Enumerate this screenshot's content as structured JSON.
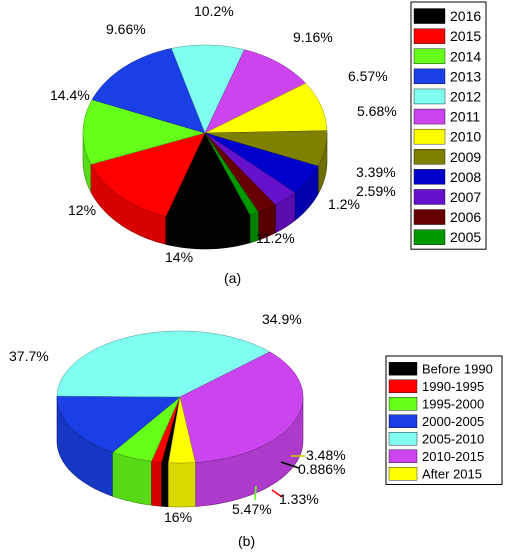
{
  "chart_data": [
    {
      "type": "pie",
      "panel_label": "(a)",
      "categories": [
        "2016",
        "2015",
        "2014",
        "2013",
        "2012",
        "2011",
        "2010",
        "2009",
        "2008",
        "2007",
        "2006",
        "2005"
      ],
      "values": [
        11.2,
        14,
        12,
        14.4,
        9.66,
        10.2,
        9.16,
        6.57,
        5.68,
        3.39,
        2.59,
        1.2
      ],
      "data_labels": [
        "11.2%",
        "14%",
        "12%",
        "14.4%",
        "9.66%",
        "10.2%",
        "9.16%",
        "6.57%",
        "5.68%",
        "3.39%",
        "2.59%",
        "1.2%"
      ],
      "colors": [
        "#000000",
        "#ff0000",
        "#66ff1a",
        "#1a3fe6",
        "#80fff0",
        "#cc44ee",
        "#ffff00",
        "#808000",
        "#0000cc",
        "#6611cc",
        "#660000",
        "#009900"
      ],
      "legend": [
        "2016",
        "2015",
        "2014",
        "2013",
        "2012",
        "2011",
        "2010",
        "2009",
        "2008",
        "2007",
        "2006",
        "2005"
      ],
      "legend_position": "right",
      "style": "3d"
    },
    {
      "type": "pie",
      "panel_label": "(b)",
      "categories": [
        "Before 1990",
        "1990-1995",
        "1995-2000",
        "2000-2005",
        "2005-2010",
        "2010-2015",
        "After 2015"
      ],
      "values": [
        0.886,
        1.33,
        5.47,
        16,
        37.7,
        34.9,
        3.48
      ],
      "data_labels": [
        "0.886%",
        "1.33%",
        "5.47%",
        "16%",
        "37.7%",
        "34.9%",
        "3.48%"
      ],
      "colors": [
        "#000000",
        "#ff0000",
        "#66ff1a",
        "#1a3fe6",
        "#80fff0",
        "#cc44ee",
        "#ffff00"
      ],
      "legend": [
        "Before 1990",
        "1990-1995",
        "1995-2000",
        "2000-2005",
        "2005-2010",
        "2010-2015",
        "After 2015"
      ],
      "legend_position": "right",
      "style": "3d"
    }
  ]
}
